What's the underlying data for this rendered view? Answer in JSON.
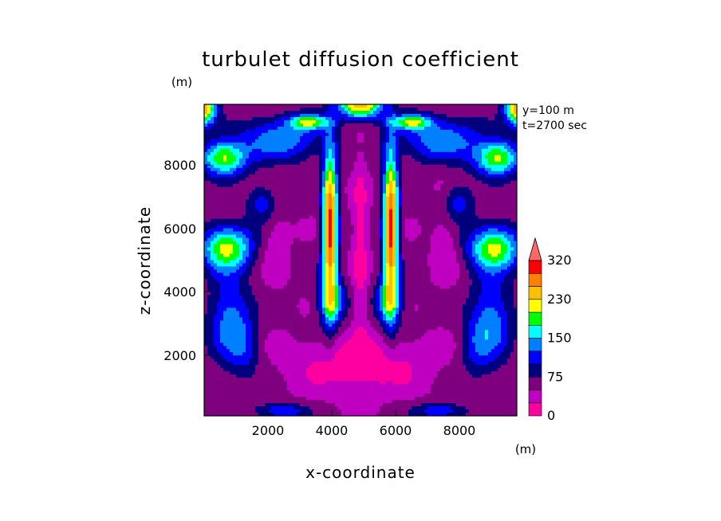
{
  "chart_data": {
    "type": "heatmap",
    "title": "turbulet diffusion coefficient",
    "xlabel": "x-coordinate",
    "ylabel": "z-coordinate",
    "x_unit": "(m)",
    "y_unit": "(m)",
    "xlim": [
      100,
      9900
    ],
    "ylim": [
      100,
      9900
    ],
    "x_ticks": [
      "2000",
      "4000",
      "6000",
      "8000"
    ],
    "y_ticks": [
      "2000",
      "4000",
      "6000",
      "8000"
    ],
    "annotations": [
      "y=100 m",
      "t=2700 sec"
    ],
    "colorbar": {
      "levels": [
        0,
        25,
        50,
        75,
        100,
        125,
        150,
        175,
        200,
        230,
        260,
        290,
        320
      ],
      "tick_labels": [
        "0",
        "75",
        "150",
        "230",
        "320"
      ],
      "colors": [
        "#ff00a0",
        "#c000c0",
        "#7f007f",
        "#00007f",
        "#0000ff",
        "#0080ff",
        "#00ffff",
        "#00ff00",
        "#ffff00",
        "#ffc000",
        "#ff8000",
        "#ff0000",
        "#ff6666"
      ],
      "extend": "max"
    }
  }
}
